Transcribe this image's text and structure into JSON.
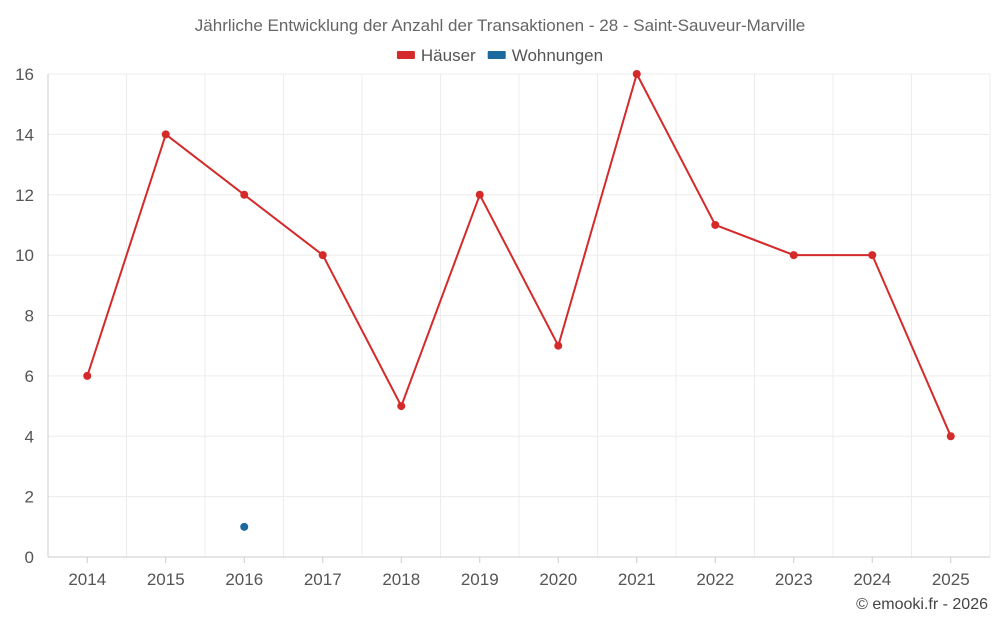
{
  "chart_data": {
    "type": "line",
    "title": "Jährliche Entwicklung der Anzahl der Transaktionen - 28 - Saint-Sauveur-Marville",
    "x": [
      "2014",
      "2015",
      "2016",
      "2017",
      "2018",
      "2019",
      "2020",
      "2021",
      "2022",
      "2023",
      "2024",
      "2025"
    ],
    "ylim": [
      0,
      16
    ],
    "yticks": [
      0,
      2,
      4,
      6,
      8,
      10,
      12,
      14,
      16
    ],
    "grid": true,
    "legend_position": "top-center",
    "series": [
      {
        "name": "Häuser",
        "color": "#d42a2a",
        "values": [
          6,
          14,
          12,
          10,
          5,
          12,
          7,
          16,
          11,
          10,
          10,
          4
        ]
      },
      {
        "name": "Wohnungen",
        "color": "#1a6aa0",
        "values": [
          null,
          null,
          1,
          null,
          null,
          null,
          null,
          null,
          null,
          null,
          null,
          null
        ]
      }
    ]
  },
  "credit": "© emooki.fr - 2026"
}
